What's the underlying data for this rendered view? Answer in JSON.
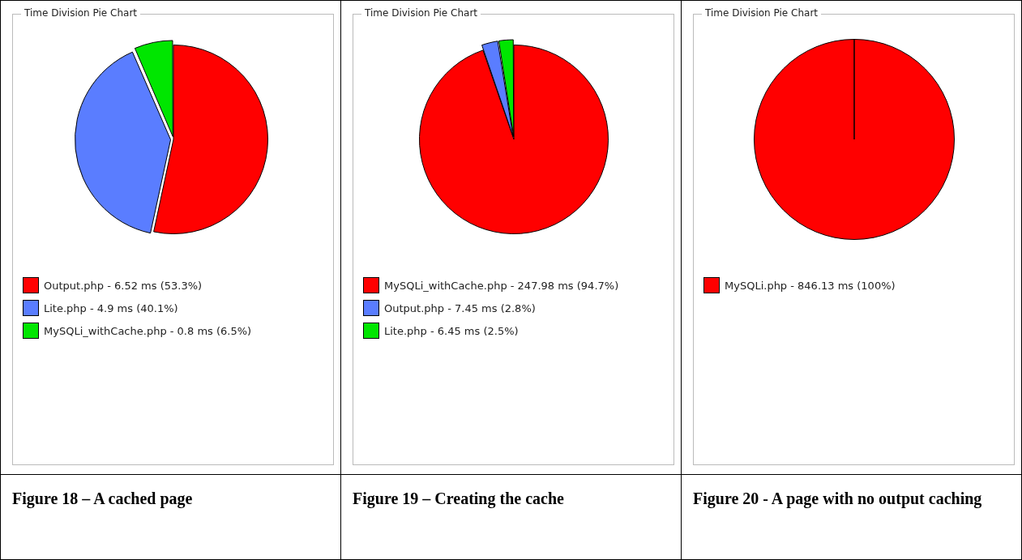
{
  "chart_data": [
    {
      "type": "pie",
      "title": "Time Division Pie Chart",
      "categories": [
        "Output.php - 6.52 ms (53.3%)",
        "Lite.php - 4.9 ms (40.1%)",
        "MySQLi_withCache.php - 0.8 ms (6.5%)"
      ],
      "values": [
        53.3,
        40.1,
        6.5
      ],
      "colors": [
        "#ff0000",
        "#5a7dff",
        "#00e600"
      ],
      "legend": "bottom",
      "annotations": [
        "Figure 18 – A cached page"
      ]
    },
    {
      "type": "pie",
      "title": "Time Division Pie Chart",
      "categories": [
        "MySQLi_withCache.php - 247.98 ms (94.7%)",
        "Output.php - 7.45 ms (2.8%)",
        "Lite.php - 6.45 ms (2.5%)"
      ],
      "values": [
        94.7,
        2.8,
        2.5
      ],
      "colors": [
        "#ff0000",
        "#5a7dff",
        "#00e600"
      ],
      "legend": "bottom",
      "annotations": [
        "Figure 19 – Creating the cache"
      ]
    },
    {
      "type": "pie",
      "title": "Time Division Pie Chart",
      "categories": [
        "MySQLi.php - 846.13 ms (100%)"
      ],
      "values": [
        100
      ],
      "colors": [
        "#ff0000"
      ],
      "legend": "bottom",
      "annotations": [
        "Figure 20 - A page with no output caching"
      ]
    }
  ]
}
